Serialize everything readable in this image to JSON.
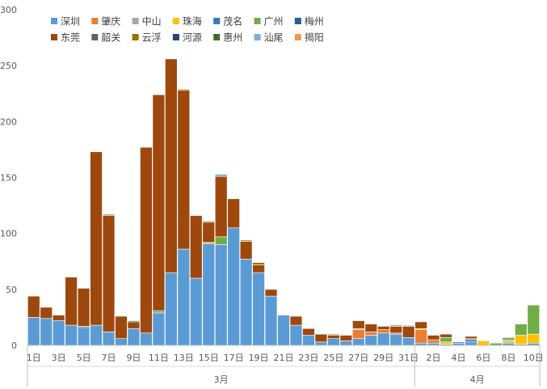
{
  "chart_data": {
    "type": "bar",
    "stacked": true,
    "title": "",
    "xlabel": "",
    "ylabel": "",
    "ylim": [
      0,
      300
    ],
    "yticks": [
      0,
      50,
      100,
      150,
      200,
      250,
      300
    ],
    "grid": false,
    "legend_position": "top",
    "months": [
      {
        "label": "3月",
        "first_index": 0,
        "last_index": 30
      },
      {
        "label": "4月",
        "first_index": 31,
        "last_index": 40
      }
    ],
    "categories": [
      "1日",
      "2日",
      "3日",
      "4日",
      "5日",
      "6日",
      "7日",
      "8日",
      "9日",
      "10日",
      "11日",
      "12日",
      "13日",
      "14日",
      "15日",
      "16日",
      "17日",
      "18日",
      "19日",
      "20日",
      "21日",
      "22日",
      "23日",
      "24日",
      "25日",
      "26日",
      "27日",
      "28日",
      "29日",
      "30日",
      "31日",
      "1日",
      "2日",
      "3日",
      "4日",
      "5日",
      "6日",
      "7日",
      "8日",
      "9日",
      "10日"
    ],
    "x_tick_labels": [
      "1日",
      "",
      "3日",
      "",
      "5日",
      "",
      "7日",
      "",
      "9日",
      "",
      "11日",
      "",
      "13日",
      "",
      "15日",
      "",
      "17日",
      "",
      "19日",
      "",
      "21日",
      "",
      "23日",
      "",
      "25日",
      "",
      "27日",
      "",
      "29日",
      "",
      "31日",
      "",
      "2日",
      "",
      "4日",
      "",
      "6日",
      "",
      "8日",
      "",
      "10日"
    ],
    "series": [
      {
        "name": "深圳",
        "color": "#5B9BD5",
        "values": [
          25,
          24,
          22,
          18,
          16,
          18,
          12,
          6,
          15,
          11,
          29,
          65,
          86,
          60,
          91,
          90,
          105,
          77,
          65,
          44,
          27,
          18,
          9,
          3,
          6,
          4,
          6,
          9,
          11,
          10,
          7,
          2,
          2,
          1,
          2,
          3,
          0,
          0,
          2,
          1,
          2
        ]
      },
      {
        "name": "肇庆",
        "color": "#ED7D31",
        "values": [
          0,
          0,
          0,
          0,
          0,
          0,
          0,
          0,
          0,
          0,
          0,
          0,
          0,
          0,
          0,
          0,
          0,
          0,
          0,
          0,
          0,
          0,
          0,
          0,
          0,
          0,
          8,
          3,
          3,
          1,
          0,
          12,
          3,
          0,
          0,
          0,
          0,
          0,
          0,
          0,
          0
        ]
      },
      {
        "name": "中山",
        "color": "#A5A5A5",
        "values": [
          0,
          0,
          0,
          0,
          0,
          0,
          0,
          0,
          0,
          0,
          0,
          0,
          0,
          0,
          0,
          0,
          0,
          0,
          0,
          0,
          0,
          0,
          0,
          0,
          0,
          0,
          1,
          0,
          0,
          0,
          0,
          0,
          0,
          0,
          0,
          0,
          0,
          0,
          0,
          0,
          0
        ]
      },
      {
        "name": "珠海",
        "color": "#FFC000",
        "values": [
          0,
          0,
          0,
          0,
          0,
          0,
          0,
          0,
          0,
          0,
          0,
          0,
          0,
          0,
          1,
          0,
          0,
          0,
          0,
          0,
          0,
          0,
          0,
          0,
          0,
          0,
          0,
          0,
          0,
          0,
          0,
          1,
          0,
          2,
          0,
          0,
          4,
          0,
          2,
          8,
          8
        ]
      },
      {
        "name": "茂名",
        "color": "#4472C4",
        "values": [
          0,
          0,
          0,
          0,
          0,
          0,
          0,
          0,
          0,
          0,
          0,
          0,
          0,
          0,
          0,
          0,
          0,
          0,
          0,
          0,
          0,
          0,
          0,
          0,
          0,
          0,
          0,
          0,
          0,
          0,
          0,
          0,
          0,
          0,
          1,
          2,
          0,
          0,
          1,
          0,
          0
        ]
      },
      {
        "name": "广州",
        "color": "#70AD47",
        "values": [
          0,
          0,
          0,
          0,
          0,
          0,
          0,
          0,
          0,
          0,
          2,
          0,
          0,
          0,
          0,
          7,
          0,
          0,
          0,
          0,
          0,
          0,
          0,
          0,
          0,
          0,
          0,
          0,
          0,
          0,
          0,
          0,
          0,
          4,
          0,
          1,
          0,
          2,
          2,
          10,
          26
        ]
      },
      {
        "name": "梅州",
        "color": "#255E91",
        "values": [
          0,
          0,
          0,
          0,
          1,
          0,
          0,
          0,
          0,
          0,
          0,
          0,
          0,
          0,
          0,
          0,
          0,
          0,
          0,
          0,
          0,
          0,
          0,
          0,
          0,
          0,
          0,
          0,
          0,
          0,
          0,
          0,
          0,
          0,
          0,
          0,
          0,
          0,
          0,
          0,
          0
        ]
      },
      {
        "name": "东莞",
        "color": "#9E480E",
        "values": [
          19,
          10,
          5,
          43,
          34,
          155,
          104,
          20,
          6,
          166,
          193,
          191,
          142,
          56,
          18,
          54,
          26,
          16,
          7,
          6,
          0,
          8,
          6,
          7,
          3,
          5,
          7,
          7,
          3,
          6,
          10,
          6,
          4,
          3,
          0,
          2,
          0,
          0,
          0,
          0,
          0
        ]
      },
      {
        "name": "韶关",
        "color": "#636363",
        "values": [
          0,
          0,
          0,
          0,
          0,
          0,
          0,
          0,
          0,
          0,
          0,
          0,
          0,
          0,
          0,
          0,
          0,
          0,
          0,
          0,
          0,
          0,
          0,
          0,
          0,
          0,
          0,
          0,
          0,
          0,
          0,
          0,
          0,
          0,
          0,
          0,
          0,
          0,
          0,
          0,
          0
        ]
      },
      {
        "name": "云浮",
        "color": "#997300",
        "values": [
          0,
          0,
          0,
          0,
          0,
          0,
          0,
          0,
          0,
          0,
          0,
          0,
          1,
          0,
          1,
          0,
          0,
          1,
          2,
          0,
          0,
          0,
          0,
          0,
          1,
          0,
          0,
          0,
          0,
          1,
          0,
          0,
          0,
          0,
          0,
          0,
          0,
          0,
          0,
          0,
          0
        ]
      },
      {
        "name": "河源",
        "color": "#264478",
        "values": [
          0,
          0,
          0,
          0,
          0,
          0,
          0,
          0,
          0,
          0,
          0,
          0,
          0,
          0,
          0,
          0,
          0,
          0,
          0,
          0,
          0,
          0,
          0,
          0,
          0,
          0,
          0,
          0,
          0,
          0,
          0,
          0,
          0,
          0,
          0,
          0,
          0,
          0,
          0,
          0,
          0
        ]
      },
      {
        "name": "惠州",
        "color": "#43682B",
        "values": [
          0,
          0,
          0,
          0,
          0,
          0,
          1,
          0,
          1,
          0,
          0,
          0,
          0,
          0,
          0,
          0,
          0,
          0,
          0,
          0,
          0,
          0,
          0,
          0,
          0,
          0,
          0,
          0,
          0,
          0,
          0,
          0,
          0,
          0,
          0,
          0,
          0,
          0,
          0,
          0,
          0
        ]
      },
      {
        "name": "汕尾",
        "color": "#7CAFDD",
        "values": [
          0,
          0,
          0,
          0,
          0,
          0,
          0,
          0,
          0,
          0,
          0,
          0,
          0,
          0,
          0,
          2,
          0,
          0,
          0,
          0,
          0,
          0,
          0,
          0,
          0,
          0,
          0,
          0,
          0,
          0,
          1,
          0,
          0,
          0,
          0,
          0,
          0,
          0,
          0,
          0,
          0
        ]
      },
      {
        "name": "揭阳",
        "color": "#F1975A",
        "values": [
          0,
          0,
          0,
          0,
          0,
          0,
          0,
          0,
          0,
          0,
          0,
          0,
          0,
          0,
          0,
          0,
          0,
          0,
          0,
          0,
          0,
          0,
          0,
          0,
          0,
          0,
          0,
          0,
          0,
          0,
          0,
          0,
          0,
          0,
          0,
          0,
          0,
          0,
          0,
          0,
          0
        ]
      }
    ]
  }
}
